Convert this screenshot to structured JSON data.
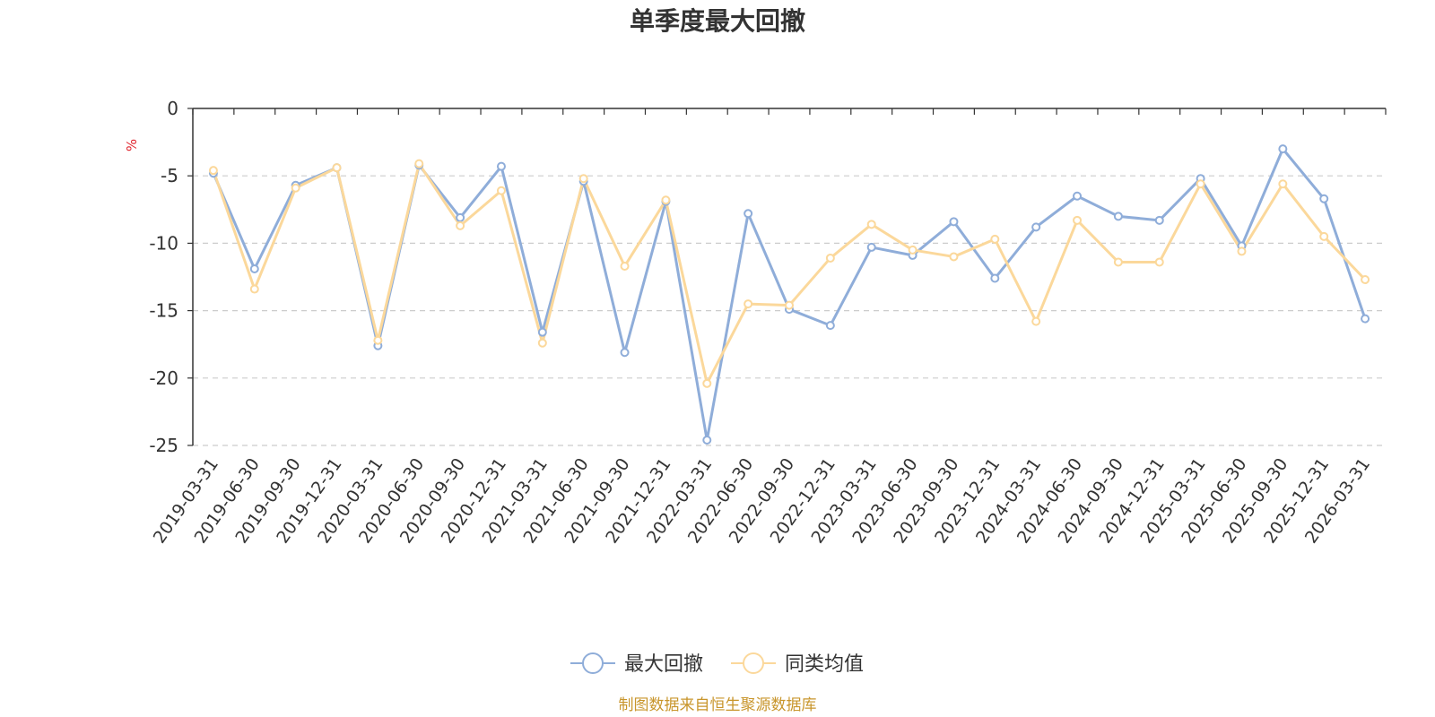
{
  "chart_data": {
    "type": "line",
    "title": "单季度最大回撤",
    "unit": "%",
    "ylim": [
      -25,
      0
    ],
    "yticks": [
      "0",
      "-5",
      "-10",
      "-15",
      "-20",
      "-25"
    ],
    "ytick_values": [
      0,
      -5,
      -10,
      -15,
      -20,
      -25
    ],
    "grid": true,
    "legend_position": "bottom-center",
    "source": "制图数据来自恒生聚源数据库",
    "categories": [
      "2019-03-31",
      "2019-06-30",
      "2019-09-30",
      "2019-12-31",
      "2020-03-31",
      "2020-06-30",
      "2020-09-30",
      "2020-12-31",
      "2021-03-31",
      "2021-06-30",
      "2021-09-30",
      "2021-12-31",
      "2022-03-31",
      "2022-06-30",
      "2022-09-30",
      "2022-12-31",
      "2023-03-31",
      "2023-06-30",
      "2023-09-30",
      "2023-12-31",
      "2024-03-31",
      "2024-06-30",
      "2024-09-30",
      "2024-12-31",
      "2025-03-31",
      "2025-06-30",
      "2025-09-30",
      "2025-12-31",
      "2026-03-31"
    ],
    "series": [
      {
        "name": "最大回撤",
        "color": "#8fadd9",
        "values": [
          -4.8,
          -11.9,
          -5.7,
          -4.4,
          -17.6,
          -4.2,
          -8.1,
          -4.3,
          -16.6,
          -5.4,
          -18.1,
          -6.9,
          -24.6,
          -7.8,
          -14.9,
          -16.1,
          -10.3,
          -10.9,
          -8.4,
          -12.6,
          -8.8,
          -6.5,
          -8.0,
          -8.3,
          -5.2,
          -10.2,
          -3.0,
          -6.7,
          -15.6
        ]
      },
      {
        "name": "同类均值",
        "color": "#fbd89b",
        "values": [
          -4.6,
          -13.4,
          -5.9,
          -4.4,
          -17.2,
          -4.1,
          -8.7,
          -6.1,
          -17.4,
          -5.2,
          -11.7,
          -6.8,
          -20.4,
          -14.5,
          -14.6,
          -11.1,
          -8.6,
          -10.5,
          -11.0,
          -9.7,
          -15.8,
          -8.3,
          -11.4,
          -11.4,
          -5.6,
          -10.6,
          -5.6,
          -9.5,
          -12.7
        ]
      }
    ]
  }
}
